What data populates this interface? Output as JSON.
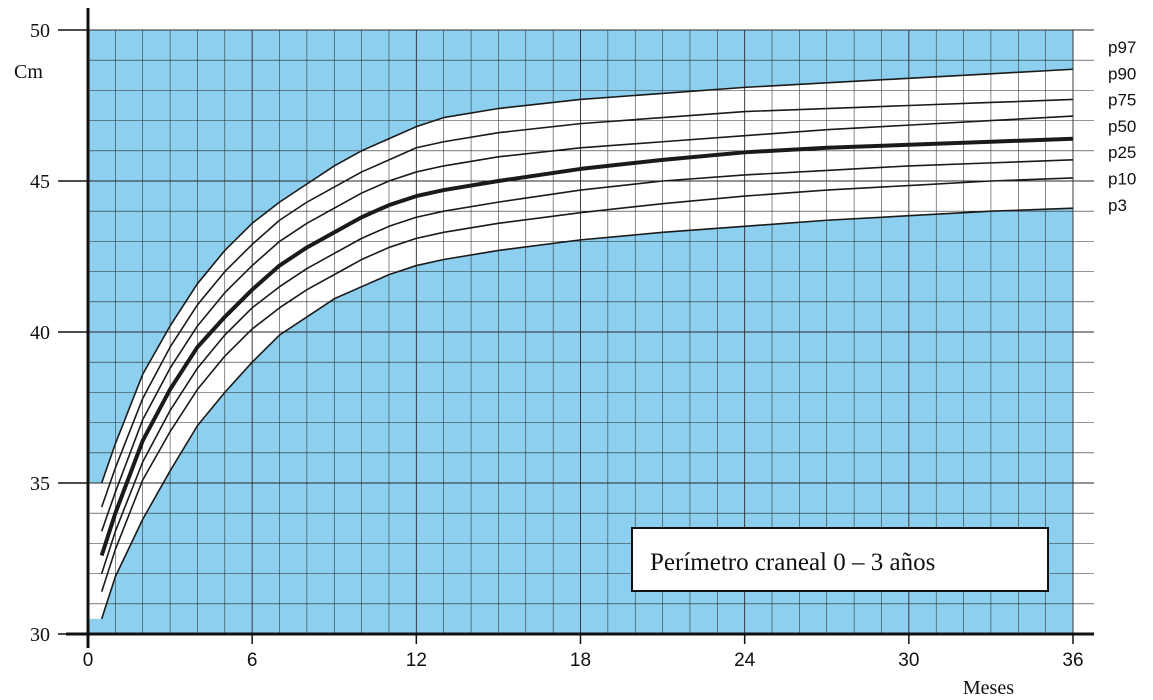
{
  "chart_data": {
    "type": "line",
    "title": "Perímetro craneal  0 – 3 años",
    "xlabel": "Meses",
    "ylabel": "Cm",
    "xlim": [
      0,
      36
    ],
    "ylim": [
      30,
      50
    ],
    "xticks": [
      0,
      6,
      12,
      18,
      24,
      30,
      36
    ],
    "yticks": [
      30,
      35,
      40,
      45,
      50
    ],
    "grid": true,
    "colors": {
      "background": "#8ccfee",
      "band": "#ffffff",
      "line": "#1a1a1a"
    },
    "x": [
      0.5,
      1,
      2,
      3,
      4,
      5,
      6,
      7,
      8,
      9,
      10,
      11,
      12,
      13,
      15,
      18,
      21,
      24,
      27,
      30,
      33,
      36
    ],
    "series": [
      {
        "name": "p97",
        "values": [
          35.0,
          36.3,
          38.6,
          40.2,
          41.6,
          42.7,
          43.6,
          44.3,
          44.9,
          45.5,
          46.0,
          46.4,
          46.8,
          47.1,
          47.4,
          47.7,
          47.9,
          48.1,
          48.25,
          48.4,
          48.55,
          48.7
        ]
      },
      {
        "name": "p90",
        "values": [
          34.2,
          35.5,
          37.8,
          39.5,
          40.9,
          42.0,
          42.9,
          43.7,
          44.3,
          44.8,
          45.3,
          45.7,
          46.1,
          46.3,
          46.6,
          46.9,
          47.1,
          47.3,
          47.4,
          47.5,
          47.6,
          47.7
        ]
      },
      {
        "name": "p75",
        "values": [
          33.4,
          34.7,
          37.1,
          38.8,
          40.2,
          41.3,
          42.2,
          43.0,
          43.6,
          44.1,
          44.6,
          45.0,
          45.3,
          45.5,
          45.8,
          46.1,
          46.3,
          46.5,
          46.7,
          46.85,
          47.0,
          47.15
        ]
      },
      {
        "name": "p50",
        "values": [
          32.6,
          34.0,
          36.4,
          38.1,
          39.5,
          40.5,
          41.4,
          42.2,
          42.8,
          43.3,
          43.8,
          44.2,
          44.5,
          44.7,
          45.0,
          45.4,
          45.7,
          45.95,
          46.1,
          46.2,
          46.3,
          46.4
        ]
      },
      {
        "name": "p25",
        "values": [
          32.0,
          33.4,
          35.7,
          37.4,
          38.8,
          39.9,
          40.8,
          41.5,
          42.1,
          42.6,
          43.1,
          43.5,
          43.8,
          44.0,
          44.3,
          44.7,
          45.0,
          45.2,
          45.35,
          45.5,
          45.6,
          45.7
        ]
      },
      {
        "name": "p10",
        "values": [
          31.4,
          32.8,
          35.1,
          36.7,
          38.1,
          39.2,
          40.1,
          40.8,
          41.4,
          41.9,
          42.4,
          42.8,
          43.1,
          43.3,
          43.6,
          43.95,
          44.25,
          44.5,
          44.7,
          44.85,
          45.0,
          45.1
        ]
      },
      {
        "name": "p3",
        "values": [
          30.5,
          31.9,
          33.8,
          35.4,
          36.9,
          38.0,
          39.0,
          39.9,
          40.5,
          41.1,
          41.5,
          41.9,
          42.2,
          42.4,
          42.7,
          43.05,
          43.3,
          43.5,
          43.7,
          43.85,
          44.0,
          44.1
        ]
      }
    ]
  }
}
